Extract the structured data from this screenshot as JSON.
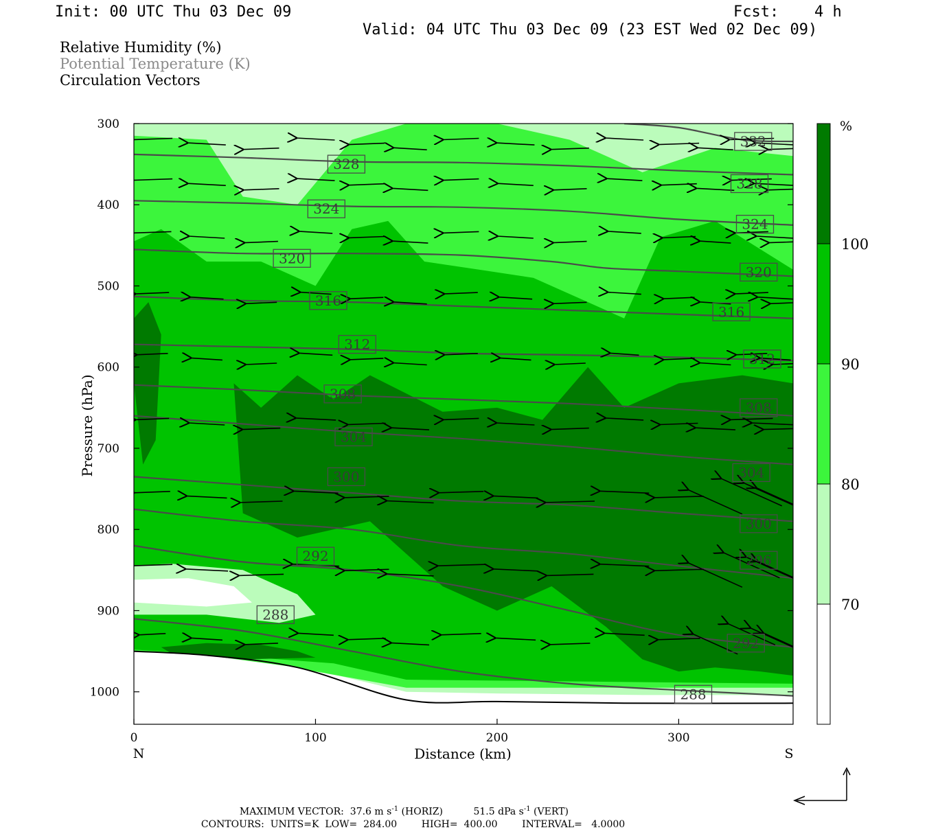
{
  "header": {
    "init": "Init: 00 UTC Thu 03 Dec 09",
    "fcst_label": "Fcst:",
    "fcst_value": "4 h",
    "valid": "Valid: 04 UTC Thu 03 Dec 09 (23 EST Wed 02 Dec 09)"
  },
  "fields": [
    {
      "label": "Relative Humidity (%)",
      "color": "#000000"
    },
    {
      "label": "Potential Temperature (K)",
      "color": "#8a8a8a"
    },
    {
      "label": "Circulation Vectors",
      "color": "#000000"
    }
  ],
  "chart_data": {
    "type": "heatmap",
    "title": "",
    "xlabel": "Distance (km)",
    "ylabel": "Pressure (hPa)",
    "xlim": [
      0,
      363
    ],
    "ylim": [
      1040,
      300
    ],
    "x_ticks": [
      "0",
      "100",
      "200",
      "300"
    ],
    "x_tick_values": [
      0,
      100,
      200,
      300
    ],
    "y_ticks": [
      "300",
      "400",
      "500",
      "600",
      "700",
      "800",
      "900",
      "1000"
    ],
    "y_tick_values": [
      300,
      400,
      500,
      600,
      700,
      800,
      900,
      1000
    ],
    "x_end_labels": {
      "left": "N",
      "right": "S"
    },
    "rh_colorbar": {
      "unit": "%",
      "levels": [
        "70",
        "80",
        "90",
        "100"
      ],
      "level_values": [
        70,
        80,
        90,
        100
      ],
      "colors": [
        "#ffffff",
        "#bbfcbb",
        "#3cf53c",
        "#00c300",
        "#007a00"
      ]
    },
    "rh_regions": [
      {
        "level": 1,
        "points": [
          [
            0,
            952
          ],
          [
            40,
            956
          ],
          [
            90,
            968
          ],
          [
            150,
            1000
          ],
          [
            200,
            1002
          ],
          [
            280,
            1004
          ],
          [
            363,
            1004
          ],
          [
            363,
            300
          ],
          [
            0,
            300
          ]
        ]
      },
      {
        "level": 2,
        "points": [
          [
            0,
            950
          ],
          [
            50,
            958
          ],
          [
            100,
            975
          ],
          [
            150,
            995
          ],
          [
            363,
            995
          ],
          [
            363,
            340
          ],
          [
            320,
            330
          ],
          [
            280,
            360
          ],
          [
            240,
            320
          ],
          [
            200,
            300
          ],
          [
            150,
            300
          ],
          [
            120,
            320
          ],
          [
            90,
            400
          ],
          [
            60,
            390
          ],
          [
            40,
            320
          ],
          [
            0,
            315
          ]
        ]
      },
      {
        "level": 3,
        "points": [
          [
            0,
            948
          ],
          [
            50,
            955
          ],
          [
            110,
            965
          ],
          [
            150,
            985
          ],
          [
            363,
            990
          ],
          [
            363,
            480
          ],
          [
            320,
            420
          ],
          [
            290,
            440
          ],
          [
            270,
            540
          ],
          [
            250,
            520
          ],
          [
            220,
            490
          ],
          [
            190,
            480
          ],
          [
            160,
            470
          ],
          [
            140,
            420
          ],
          [
            120,
            430
          ],
          [
            100,
            500
          ],
          [
            70,
            470
          ],
          [
            40,
            470
          ],
          [
            15,
            430
          ],
          [
            0,
            445
          ]
        ]
      },
      {
        "level": 4,
        "points": [
          [
            55,
            620
          ],
          [
            60,
            780
          ],
          [
            90,
            810
          ],
          [
            130,
            790
          ],
          [
            150,
            830
          ],
          [
            170,
            870
          ],
          [
            200,
            900
          ],
          [
            230,
            870
          ],
          [
            260,
            920
          ],
          [
            280,
            960
          ],
          [
            300,
            975
          ],
          [
            320,
            970
          ],
          [
            345,
            975
          ],
          [
            363,
            980
          ],
          [
            363,
            620
          ],
          [
            335,
            610
          ],
          [
            300,
            620
          ],
          [
            270,
            650
          ],
          [
            250,
            600
          ],
          [
            225,
            665
          ],
          [
            200,
            650
          ],
          [
            170,
            655
          ],
          [
            130,
            610
          ],
          [
            110,
            640
          ],
          [
            90,
            610
          ],
          [
            70,
            650
          ]
        ]
      },
      {
        "level": 4,
        "points": [
          [
            0,
            620
          ],
          [
            5,
            720
          ],
          [
            12,
            690
          ],
          [
            15,
            560
          ],
          [
            8,
            520
          ],
          [
            0,
            540
          ]
        ]
      },
      {
        "level": 1,
        "points": [
          [
            0,
            845
          ],
          [
            20,
            842
          ],
          [
            60,
            850
          ],
          [
            90,
            880
          ],
          [
            100,
            905
          ],
          [
            80,
            915
          ],
          [
            40,
            905
          ],
          [
            0,
            905
          ]
        ]
      },
      {
        "level": 0,
        "points": [
          [
            0,
            862
          ],
          [
            30,
            860
          ],
          [
            55,
            870
          ],
          [
            65,
            890
          ],
          [
            40,
            895
          ],
          [
            0,
            890
          ]
        ]
      },
      {
        "level": 4,
        "points": [
          [
            15,
            945
          ],
          [
            40,
            940
          ],
          [
            70,
            942
          ],
          [
            90,
            950
          ],
          [
            100,
            958
          ],
          [
            60,
            960
          ],
          [
            20,
            952
          ]
        ]
      },
      {
        "level": 0,
        "points": [
          [
            0,
            1040
          ],
          [
            0,
            950
          ],
          [
            40,
            955
          ],
          [
            90,
            970
          ],
          [
            150,
            1010
          ],
          [
            200,
            1012
          ],
          [
            270,
            1014
          ],
          [
            363,
            1014
          ],
          [
            363,
            1040
          ]
        ]
      }
    ],
    "theta_contours": [
      {
        "label": "332",
        "points": [
          [
            270,
            300
          ],
          [
            300,
            305
          ],
          [
            335,
            320
          ],
          [
            363,
            322
          ]
        ],
        "label_at": [
          342,
          321
        ]
      },
      {
        "label": "328",
        "points": [
          [
            0,
            338
          ],
          [
            60,
            342
          ],
          [
            120,
            347
          ],
          [
            180,
            348
          ],
          [
            240,
            352
          ],
          [
            300,
            358
          ],
          [
            363,
            363
          ]
        ],
        "label_at": [
          339,
          370
        ]
      },
      {
        "label": "324",
        "points": [
          [
            0,
            395
          ],
          [
            60,
            398
          ],
          [
            120,
            402
          ],
          [
            180,
            403
          ],
          [
            240,
            408
          ],
          [
            300,
            418
          ],
          [
            363,
            425
          ]
        ],
        "label_at": [
          105,
          405
        ]
      },
      {
        "label": "320",
        "points": [
          [
            0,
            455
          ],
          [
            60,
            460
          ],
          [
            120,
            460
          ],
          [
            180,
            462
          ],
          [
            230,
            470
          ],
          [
            260,
            478
          ],
          [
            300,
            482
          ],
          [
            363,
            488
          ]
        ],
        "label_at": [
          86,
          462
        ]
      },
      {
        "label": "316",
        "points": [
          [
            0,
            513
          ],
          [
            60,
            518
          ],
          [
            120,
            520
          ],
          [
            180,
            525
          ],
          [
            240,
            530
          ],
          [
            300,
            535
          ],
          [
            363,
            540
          ]
        ],
        "label_at": [
          107,
          517
        ]
      },
      {
        "label": "312",
        "points": [
          [
            0,
            572
          ],
          [
            60,
            575
          ],
          [
            120,
            578
          ],
          [
            180,
            583
          ],
          [
            240,
            585
          ],
          [
            300,
            588
          ],
          [
            363,
            592
          ]
        ],
        "label_at": [
          124,
          575
        ]
      },
      {
        "label": "308",
        "points": [
          [
            0,
            622
          ],
          [
            60,
            628
          ],
          [
            120,
            635
          ],
          [
            180,
            640
          ],
          [
            240,
            645
          ],
          [
            300,
            652
          ],
          [
            363,
            660
          ]
        ],
        "label_at": [
          115,
          632
        ]
      },
      {
        "label": "304",
        "points": [
          [
            0,
            660
          ],
          [
            60,
            670
          ],
          [
            120,
            680
          ],
          [
            180,
            688
          ],
          [
            240,
            698
          ],
          [
            300,
            710
          ],
          [
            363,
            720
          ]
        ],
        "label_at": [
          120,
          682
        ]
      },
      {
        "label": "300",
        "points": [
          [
            0,
            735
          ],
          [
            60,
            745
          ],
          [
            120,
            755
          ],
          [
            180,
            765
          ],
          [
            240,
            770
          ],
          [
            300,
            780
          ],
          [
            363,
            790
          ]
        ],
        "label_at": [
          117,
          730
        ]
      },
      {
        "label": "296",
        "points": [
          [
            0,
            775
          ],
          [
            60,
            790
          ],
          [
            120,
            800
          ],
          [
            180,
            820
          ],
          [
            240,
            830
          ],
          [
            300,
            845
          ],
          [
            363,
            860
          ]
        ],
        "label_at": [
          -1,
          -1
        ]
      },
      {
        "label": "292",
        "points": [
          [
            0,
            820
          ],
          [
            60,
            840
          ],
          [
            120,
            850
          ],
          [
            180,
            870
          ],
          [
            240,
            900
          ],
          [
            300,
            930
          ],
          [
            363,
            945
          ]
        ],
        "label_at": [
          -1,
          -1
        ]
      },
      {
        "label": "288",
        "points": [
          [
            0,
            910
          ],
          [
            60,
            925
          ],
          [
            120,
            950
          ],
          [
            180,
            975
          ],
          [
            240,
            990
          ],
          [
            300,
            998
          ],
          [
            363,
            1005
          ]
        ],
        "label_at": [
          -1,
          -1
        ]
      }
    ],
    "theta_boxes": [
      {
        "label": "332",
        "x": 341,
        "p": 322
      },
      {
        "label": "328",
        "x": 339,
        "p": 374
      },
      {
        "label": "324",
        "x": 106,
        "p": 405
      },
      {
        "label": "324",
        "x": 342,
        "p": 424
      },
      {
        "label": "320",
        "x": 87,
        "p": 466
      },
      {
        "label": "320",
        "x": 344,
        "p": 483
      },
      {
        "label": "316",
        "x": 107,
        "p": 518
      },
      {
        "label": "316",
        "x": 329,
        "p": 532
      },
      {
        "label": "312",
        "x": 123,
        "p": 572
      },
      {
        "label": "312",
        "x": 346,
        "p": 590
      },
      {
        "label": "308",
        "x": 115,
        "p": 633
      },
      {
        "label": "308",
        "x": 344,
        "p": 650
      },
      {
        "label": "304",
        "x": 121,
        "p": 686
      },
      {
        "label": "304",
        "x": 340,
        "p": 730
      },
      {
        "label": "300",
        "x": 117,
        "p": 735
      },
      {
        "label": "300",
        "x": 344,
        "p": 793
      },
      {
        "label": "296",
        "x": 344,
        "p": 838
      },
      {
        "label": "292",
        "x": 100,
        "p": 833
      },
      {
        "label": "292",
        "x": 337,
        "p": 940
      },
      {
        "label": "288",
        "x": 78,
        "p": 905
      },
      {
        "label": "288",
        "x": 308,
        "p": 1003
      },
      {
        "label": "328",
        "x": 117,
        "p": 350
      }
    ],
    "vector_rows": [
      {
        "p": 325,
        "u": [
          -18,
          -17,
          -16,
          -17,
          -16,
          -15,
          -16,
          -17,
          -17,
          -17,
          -18,
          -16,
          -20,
          -18,
          -18
        ]
      },
      {
        "p": 375,
        "u": [
          -18,
          -17,
          -16,
          -17,
          -16,
          -16,
          -16,
          -16,
          -15,
          -16,
          -16,
          -17,
          -18,
          -19,
          -18
        ]
      },
      {
        "p": 440,
        "u": [
          -17,
          -16,
          -15,
          -15,
          -16,
          -16,
          -16,
          -16,
          -15,
          -15,
          -15,
          -14,
          -15,
          -17,
          -17
        ]
      },
      {
        "p": 515,
        "u": [
          -15,
          -15,
          -14,
          -14,
          -15,
          -15,
          -15,
          -15,
          -15,
          -15,
          -14,
          -14,
          -15,
          -16,
          -16
        ]
      },
      {
        "p": 590,
        "u": [
          -14,
          -14,
          -14,
          -15,
          -15,
          -15,
          -15,
          -14,
          -14,
          -13,
          -14,
          -14,
          -14,
          -14,
          -14
        ]
      },
      {
        "p": 670,
        "u": [
          -15,
          -16,
          -17,
          -18,
          -17,
          -17,
          -16,
          -17,
          -17,
          -17,
          -17,
          -18,
          -19,
          -21,
          -22
        ]
      },
      {
        "p": 760,
        "u": [
          -16,
          -18,
          -19,
          -20,
          -20,
          -21,
          -20,
          -20,
          -22,
          -22,
          -22,
          -24,
          -27,
          -28,
          -28
        ]
      },
      {
        "p": 850,
        "u": [
          -18,
          -19,
          -20,
          -21,
          -20,
          -21,
          -21,
          -20,
          -21,
          -22,
          -22,
          -24,
          -25,
          -26,
          -27
        ]
      },
      {
        "p": 935,
        "u": [
          -12,
          -14,
          -15,
          -16,
          -17,
          -17,
          -18,
          -18,
          -18,
          -18,
          -19,
          -20,
          -21,
          -22,
          -22
        ]
      }
    ],
    "vector_columns_km": [
      10,
      40,
      70,
      100,
      128,
      152,
      180,
      210,
      240,
      270,
      300,
      320,
      340,
      353,
      360
    ],
    "max_vector": {
      "label": "MAXIMUM VECTOR:",
      "horiz_value": "37.6",
      "horiz_unit": "m s",
      "horiz_exp": "-1",
      "horiz_tag": "(HORIZ)",
      "vert_value": "51.5",
      "vert_unit": "dPa s",
      "vert_exp": "-1",
      "vert_tag": "(VERT)"
    },
    "contours_info": {
      "label": "CONTOURS:",
      "units": "UNITS=K",
      "low": "LOW=",
      "low_value": "284.00",
      "high": "HIGH=",
      "high_value": "400.00",
      "interval": "INTERVAL=",
      "interval_value": "4.0000"
    }
  }
}
